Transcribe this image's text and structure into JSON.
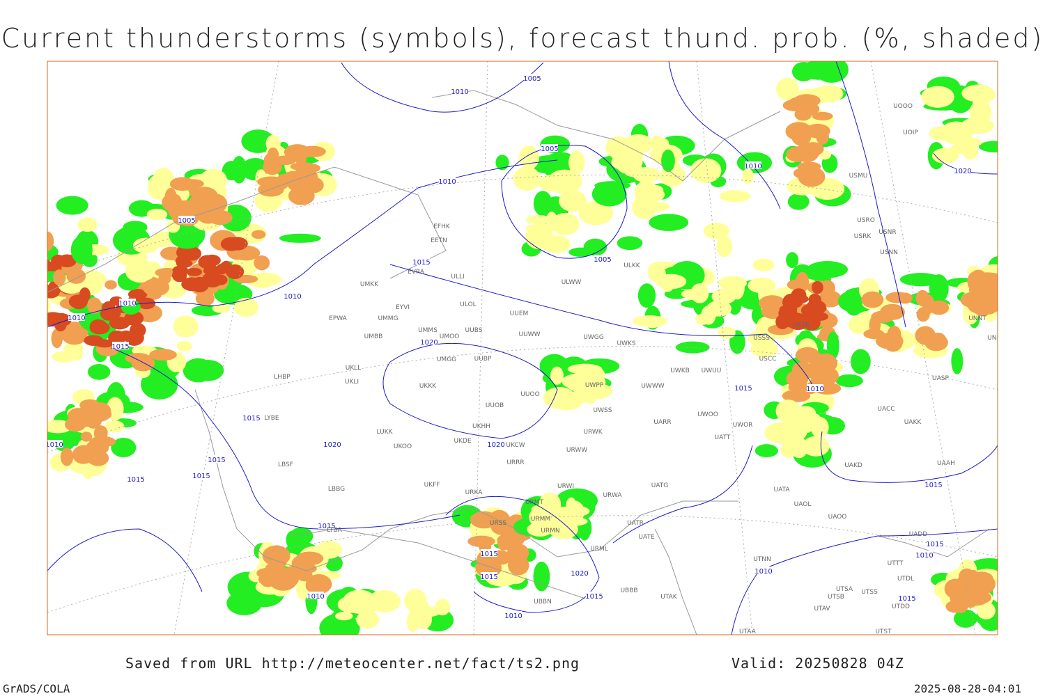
{
  "header": {
    "title": "Current thunderstorms (symbols), forecast thund. prob. (%, shaded)"
  },
  "map": {
    "isobar_labels": [
      1005,
      1010,
      1005,
      1010,
      1005,
      1015,
      1005,
      1010,
      1010,
      1010,
      1015,
      1020,
      1015,
      1010,
      1015,
      1020,
      1020,
      1010,
      1015,
      1015,
      1015,
      1015,
      1015,
      1015,
      1015,
      1020,
      1015,
      1010,
      1010,
      1010,
      1010,
      1020,
      1015,
      1010,
      1015
    ],
    "stations": [
      "UMKK",
      "EVRA",
      "ULOL",
      "UUEM",
      "EYVI",
      "UMMG",
      "UMMS",
      "UMOO",
      "UUBS",
      "UUWW",
      "UMBB",
      "EPWA",
      "UMGG",
      "UUBP",
      "UKLL",
      "UKLI",
      "LHBP",
      "UKKK",
      "UUOO",
      "UUOB",
      "LYBE",
      "UKHH",
      "ULLI",
      "EFHK",
      "EETN",
      "ULKK",
      "ULWW",
      "UWGG",
      "UWKS",
      "UWPP",
      "UWWW",
      "UWKB",
      "UWUU",
      "USCC",
      "USSS",
      "USTR",
      "UWSS",
      "UARR",
      "UWOO",
      "UWOR",
      "UATT",
      "URWK",
      "URWW",
      "UKDE",
      "UKOO",
      "UKCW",
      "URRR",
      "LUKK",
      "LBSF",
      "LBBG",
      "UKFF",
      "URKA",
      "URWI",
      "UATG",
      "URWA",
      "URMT",
      "URSS",
      "URMM",
      "URMN",
      "UATR",
      "UATE",
      "URML",
      "UBBB",
      "UBBN",
      "UTAK",
      "LTBA",
      "UATA",
      "UAOL",
      "UAOO",
      "UAAH",
      "UAKD",
      "UACC",
      "UAKK",
      "UASP",
      "UNBB",
      "UNNT",
      "USNR",
      "USNN",
      "USRO",
      "USRK",
      "USMU",
      "UOOO",
      "UOIP",
      "UTNN",
      "UTAA",
      "UTSA",
      "UTSB",
      "UTAV",
      "UTDL",
      "UTTT",
      "UTSS",
      "UADD",
      "UTDD",
      "UTST"
    ]
  },
  "footer": {
    "source": "Saved from URL http://meteocenter.net/fact/ts2.png",
    "valid": "Valid: 20250828 04Z",
    "software": "GrADS/COLA",
    "timestamp": "2025-08-28-04:01"
  }
}
